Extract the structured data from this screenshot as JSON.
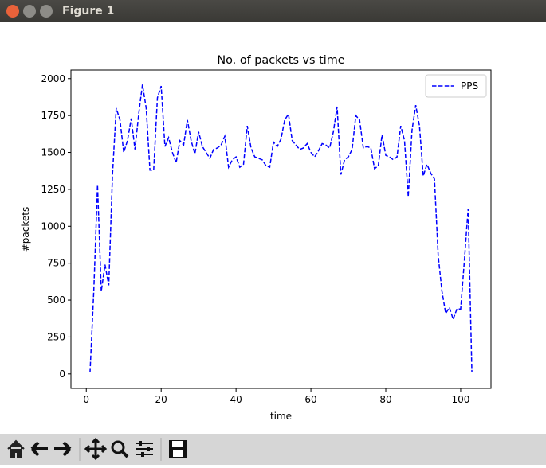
{
  "window": {
    "title": "Figure 1"
  },
  "chart_data": {
    "type": "line",
    "title": "No. of packets vs time",
    "x_label": "time",
    "y_label": "#packets",
    "x": [
      1,
      2,
      3,
      4,
      5,
      6,
      7,
      8,
      9,
      10,
      11,
      12,
      13,
      14,
      15,
      16,
      17,
      18,
      19,
      20,
      21,
      22,
      23,
      24,
      25,
      26,
      27,
      28,
      29,
      30,
      31,
      32,
      33,
      34,
      35,
      36,
      37,
      38,
      39,
      40,
      41,
      42,
      43,
      44,
      45,
      46,
      47,
      48,
      49,
      50,
      51,
      52,
      53,
      54,
      55,
      56,
      57,
      58,
      59,
      60,
      61,
      62,
      63,
      64,
      65,
      66,
      67,
      68,
      69,
      70,
      71,
      72,
      73,
      74,
      75,
      76,
      77,
      78,
      79,
      80,
      81,
      82,
      83,
      84,
      85,
      86,
      87,
      88,
      89,
      90,
      91,
      92,
      93,
      94,
      95,
      96,
      97,
      98,
      99,
      100,
      101,
      102,
      103
    ],
    "series": [
      {
        "name": "PPS",
        "color": "#0000ff",
        "dashed": true,
        "values": [
          10,
          560,
          1280,
          560,
          740,
          600,
          1350,
          1800,
          1720,
          1500,
          1580,
          1730,
          1520,
          1760,
          1960,
          1800,
          1380,
          1380,
          1870,
          1950,
          1540,
          1600,
          1500,
          1430,
          1580,
          1550,
          1720,
          1580,
          1490,
          1640,
          1540,
          1500,
          1460,
          1520,
          1530,
          1550,
          1610,
          1400,
          1450,
          1470,
          1400,
          1420,
          1680,
          1530,
          1470,
          1460,
          1450,
          1410,
          1400,
          1570,
          1540,
          1590,
          1720,
          1760,
          1580,
          1550,
          1520,
          1530,
          1560,
          1500,
          1470,
          1510,
          1560,
          1550,
          1530,
          1640,
          1810,
          1350,
          1450,
          1470,
          1520,
          1750,
          1720,
          1530,
          1540,
          1530,
          1390,
          1410,
          1620,
          1480,
          1470,
          1450,
          1470,
          1680,
          1580,
          1200,
          1650,
          1820,
          1680,
          1340,
          1420,
          1360,
          1320,
          800,
          560,
          410,
          450,
          370,
          440,
          440,
          770,
          1120,
          10
        ]
      }
    ],
    "xlim": [
      -4.1,
      108.1
    ],
    "ylim": [
      -98,
      2058
    ],
    "xticks": [
      0,
      20,
      40,
      60,
      80,
      100
    ],
    "yticks": [
      0,
      250,
      500,
      750,
      1000,
      1250,
      1500,
      1750,
      2000
    ],
    "legend": "upper right"
  }
}
